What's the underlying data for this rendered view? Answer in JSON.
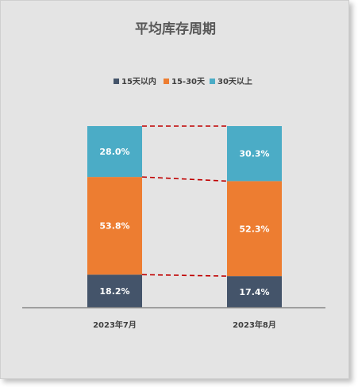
{
  "chart_data": {
    "type": "bar",
    "stacked": true,
    "normalized": true,
    "title": "平均库存周期",
    "legend_position": "top",
    "categories": [
      "2023年7月",
      "2023年8月"
    ],
    "series": [
      {
        "name": "15天以内",
        "values": [
          18.2,
          17.4
        ],
        "labels": [
          "18.2%",
          "17.4%"
        ],
        "color": "#44546a"
      },
      {
        "name": "15-30天",
        "values": [
          53.8,
          52.3
        ],
        "labels": [
          "53.8%",
          "52.3%"
        ],
        "color": "#ed7d31"
      },
      {
        "name": "30天以上",
        "values": [
          28.0,
          30.3
        ],
        "labels": [
          "28.0%",
          "30.3%"
        ],
        "color": "#4bacc6"
      }
    ],
    "ylim": [
      0,
      100
    ],
    "grid": false,
    "connector_color": "#c00000"
  }
}
